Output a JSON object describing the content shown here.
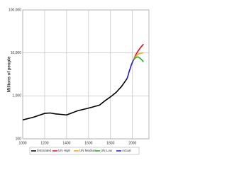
{
  "chart_data": {
    "type": "line",
    "y_label": "Millions of people",
    "log_y": true,
    "grid": true,
    "legend": "bottom",
    "xlim": [
      1000,
      2150
    ],
    "xticks": [
      1000,
      1200,
      1400,
      1600,
      1800,
      2000
    ],
    "ylim": [
      100,
      100000
    ],
    "yticks": [
      100,
      {
        "value": 1000,
        "label": "1,000"
      },
      {
        "value": 10000,
        "label": "10,000"
      },
      {
        "value": 100000,
        "label": "100,000"
      }
    ],
    "series": [
      {
        "name": "Estimated",
        "color": "#000000",
        "x": [
          1000,
          1100,
          1200,
          1250,
          1300,
          1350,
          1400,
          1500,
          1600,
          1700,
          1750,
          1800,
          1850,
          1900,
          1950
        ],
        "values": [
          275,
          320,
          390,
          400,
          380,
          370,
          360,
          450,
          520,
          610,
          770,
          950,
          1200,
          1650,
          2500
        ]
      },
      {
        "name": "UN High",
        "color": "#e8101c",
        "x": [
          2010,
          2030,
          2050,
          2075,
          2100
        ],
        "values": [
          6900,
          9000,
          11000,
          13500,
          16000
        ]
      },
      {
        "name": "UN Medium",
        "color": "#f5a623",
        "x": [
          2010,
          2030,
          2050,
          2075,
          2100
        ],
        "values": [
          6900,
          8300,
          9300,
          9800,
          10100
        ]
      },
      {
        "name": "UN Low",
        "color": "#22b022",
        "x": [
          2010,
          2030,
          2050,
          2075,
          2100
        ],
        "values": [
          6900,
          7800,
          8100,
          7300,
          6200
        ]
      },
      {
        "name": "Actual",
        "color": "#1c1ccc",
        "x": [
          1950,
          1960,
          1970,
          1980,
          1990,
          2000,
          2010
        ],
        "values": [
          2500,
          3000,
          3700,
          4400,
          5300,
          6100,
          6900
        ]
      }
    ]
  }
}
